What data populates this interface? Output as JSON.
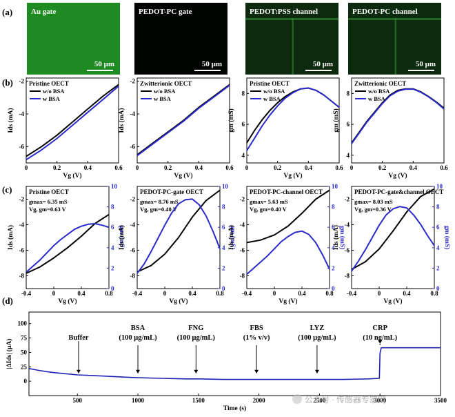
{
  "panel_labels": [
    "(a)",
    "(b)",
    "(c)",
    "(d)"
  ],
  "images": [
    {
      "title": "Au gate",
      "scalebar": "50 μm",
      "tone": "#1e8a22",
      "stripe": false
    },
    {
      "title": "PEDOT-PC gate",
      "scalebar": "50 μm",
      "tone": "#020402",
      "stripe": false
    },
    {
      "title": "PEDOT:PSS channel",
      "scalebar": "50 μm",
      "tone": "#0d2a0f",
      "stripe": true
    },
    {
      "title": "PEDOT-PC channel",
      "scalebar": "50 μm",
      "tone": "#0c2a0e",
      "stripe": true
    }
  ],
  "colors": {
    "black": "#000000",
    "blue": "#2a2ac8",
    "trace": "#1f22b4"
  },
  "chart_data": [
    {
      "type": "line",
      "title": "Pristine OECT",
      "xlabel": "Vg (V)",
      "ylabel": "Ids (mA)",
      "xlim": [
        0,
        0.6
      ],
      "ylim": [
        -7,
        -1.8
      ],
      "xticks": [
        0,
        0.2,
        0.4,
        0.6
      ],
      "yticks": [
        -6,
        -4,
        -2
      ],
      "legend": [
        "w/o BSA",
        "w  BSA"
      ],
      "series": [
        {
          "name": "w/o BSA",
          "color": "#000000",
          "x": [
            0,
            0.1,
            0.2,
            0.3,
            0.4,
            0.5,
            0.6
          ],
          "y": [
            -6.6,
            -6.0,
            -5.3,
            -4.5,
            -3.7,
            -2.9,
            -2.2
          ]
        },
        {
          "name": "w  BSA",
          "color": "#2a2ac8",
          "x": [
            0,
            0.1,
            0.2,
            0.3,
            0.4,
            0.5,
            0.6
          ],
          "y": [
            -6.8,
            -6.2,
            -5.5,
            -4.7,
            -3.9,
            -3.1,
            -2.3
          ]
        }
      ]
    },
    {
      "type": "line",
      "title": "Zwitterionic OECT",
      "xlabel": "Vg (V)",
      "ylabel": "Ids (mA)",
      "xlim": [
        0,
        0.6
      ],
      "ylim": [
        -7,
        -1.8
      ],
      "xticks": [
        0,
        0.2,
        0.4,
        0.6
      ],
      "yticks": [
        -6,
        -4,
        -2
      ],
      "legend": [
        "w/o BSA",
        "w  BSA"
      ],
      "series": [
        {
          "name": "w/o BSA",
          "color": "#000000",
          "x": [
            0,
            0.1,
            0.2,
            0.3,
            0.4,
            0.5,
            0.6
          ],
          "y": [
            -6.5,
            -5.8,
            -5.1,
            -4.4,
            -3.6,
            -2.9,
            -2.2
          ]
        },
        {
          "name": "w  BSA",
          "color": "#2a2ac8",
          "x": [
            0,
            0.1,
            0.2,
            0.3,
            0.4,
            0.5,
            0.6
          ],
          "y": [
            -6.55,
            -5.85,
            -5.15,
            -4.45,
            -3.65,
            -2.95,
            -2.25
          ]
        }
      ]
    },
    {
      "type": "line",
      "title": "Pristine OECT",
      "xlabel": "Vg (V)",
      "ylabel": "gm (mS)",
      "xlim": [
        0,
        0.6
      ],
      "ylim": [
        3.5,
        9
      ],
      "xticks": [
        0,
        0.2,
        0.4,
        0.6
      ],
      "yticks": [
        4,
        6,
        8
      ],
      "legend": [
        "w/o BSA",
        "w  BSA"
      ],
      "series": [
        {
          "name": "w/o BSA",
          "color": "#000000",
          "x": [
            0,
            0.05,
            0.1,
            0.15,
            0.2,
            0.25,
            0.3,
            0.35,
            0.4,
            0.45,
            0.5,
            0.55,
            0.6
          ],
          "y": [
            4.8,
            5.6,
            6.3,
            6.9,
            7.4,
            7.8,
            8.1,
            8.3,
            8.35,
            8.2,
            7.9,
            7.5,
            7.1
          ]
        },
        {
          "name": "w  BSA",
          "color": "#2a2ac8",
          "x": [
            0,
            0.05,
            0.1,
            0.15,
            0.2,
            0.25,
            0.3,
            0.35,
            0.4,
            0.45,
            0.5,
            0.55,
            0.6
          ],
          "y": [
            4.3,
            5.1,
            5.9,
            6.6,
            7.2,
            7.7,
            8.05,
            8.3,
            8.35,
            8.2,
            7.9,
            7.5,
            7.1
          ]
        }
      ]
    },
    {
      "type": "line",
      "title": "Zwitterionic OECT",
      "xlabel": "Vg (V)",
      "ylabel": "gm (mS)",
      "xlim": [
        0,
        0.6
      ],
      "ylim": [
        3.5,
        9
      ],
      "xticks": [
        0,
        0.2,
        0.4,
        0.6
      ],
      "yticks": [
        4,
        6,
        8
      ],
      "legend": [
        "w/o BSA",
        "w  BSA"
      ],
      "series": [
        {
          "name": "w/o BSA",
          "color": "#000000",
          "x": [
            0,
            0.05,
            0.1,
            0.15,
            0.2,
            0.25,
            0.3,
            0.35,
            0.4,
            0.45,
            0.5,
            0.55,
            0.6
          ],
          "y": [
            4.8,
            5.5,
            6.2,
            6.8,
            7.4,
            7.9,
            8.2,
            8.3,
            8.3,
            8.1,
            7.8,
            7.45,
            7.05
          ]
        },
        {
          "name": "w  BSA",
          "color": "#2a2ac8",
          "x": [
            0,
            0.05,
            0.1,
            0.15,
            0.2,
            0.25,
            0.3,
            0.35,
            0.4,
            0.45,
            0.5,
            0.55,
            0.6
          ],
          "y": [
            4.75,
            5.45,
            6.15,
            6.75,
            7.35,
            7.85,
            8.15,
            8.28,
            8.28,
            8.08,
            7.78,
            7.42,
            7.0
          ]
        }
      ]
    },
    {
      "type": "line",
      "title": "Pristine OECT",
      "annotation": [
        "gmax= 6.35 mS",
        "Vg, gm=0.63 V"
      ],
      "xlabel": "Vg (V)",
      "ylabel": "Ids (mA)",
      "y2label": "gm (mS)",
      "xlim": [
        -0.4,
        0.8
      ],
      "ylim": [
        -9,
        -1
      ],
      "y2lim": [
        0,
        10
      ],
      "xticks": [
        -0.4,
        0,
        0.4,
        0.8
      ],
      "yticks": [
        -8,
        -6,
        -4,
        -2
      ],
      "y2ticks": [
        0,
        2,
        4,
        6,
        8,
        10
      ],
      "series": [
        {
          "name": "Ids",
          "axis": "left",
          "color": "#000000",
          "x": [
            -0.4,
            -0.2,
            0,
            0.2,
            0.4,
            0.6,
            0.8
          ],
          "y": [
            -7.8,
            -7.3,
            -6.6,
            -5.8,
            -4.9,
            -3.9,
            -3.2
          ]
        },
        {
          "name": "gm",
          "axis": "right",
          "color": "#2a2ac8",
          "x": [
            -0.4,
            -0.3,
            -0.2,
            -0.1,
            0,
            0.1,
            0.2,
            0.3,
            0.4,
            0.5,
            0.6,
            0.7,
            0.8
          ],
          "y": [
            1.6,
            2.2,
            2.8,
            3.5,
            4.2,
            4.8,
            5.3,
            5.8,
            6.1,
            6.3,
            6.35,
            6.2,
            6.0
          ]
        }
      ]
    },
    {
      "type": "line",
      "title": "PEDOT-PC-gate OECT",
      "annotation": [
        "gmax= 8.76 mS",
        "Vg, gm=0.40 V"
      ],
      "xlabel": "Vg (V)",
      "ylabel": "Ids (mA)",
      "y2label": "gm (mS)",
      "xlim": [
        -0.4,
        0.8
      ],
      "ylim": [
        -9,
        -1
      ],
      "y2lim": [
        0,
        10
      ],
      "xticks": [
        -0.4,
        0,
        0.4,
        0.8
      ],
      "yticks": [
        -8,
        -6,
        -4,
        -2
      ],
      "y2ticks": [
        0,
        2,
        4,
        6,
        8,
        10
      ],
      "series": [
        {
          "name": "Ids",
          "axis": "left",
          "color": "#000000",
          "x": [
            -0.4,
            -0.2,
            0,
            0.2,
            0.4,
            0.6,
            0.8
          ],
          "y": [
            -7.7,
            -7.2,
            -6.3,
            -5.0,
            -3.4,
            -2.1,
            -1.3
          ]
        },
        {
          "name": "gm",
          "axis": "right",
          "color": "#2a2ac8",
          "x": [
            -0.4,
            -0.3,
            -0.2,
            -0.1,
            0,
            0.1,
            0.2,
            0.3,
            0.4,
            0.5,
            0.6,
            0.7,
            0.8
          ],
          "y": [
            1.5,
            2.4,
            3.6,
            4.9,
            6.2,
            7.4,
            8.3,
            8.7,
            8.76,
            8.2,
            7.1,
            5.6,
            3.9
          ]
        }
      ]
    },
    {
      "type": "line",
      "title": "PEDOT-PC-channel OECT",
      "annotation": [
        "gmax= 5.63 mS",
        "Vg, gm=0.40 V"
      ],
      "xlabel": "Vg (V)",
      "ylabel": "Ids (mA)",
      "y2label": "gm (mS)",
      "xlim": [
        -0.4,
        0.8
      ],
      "ylim": [
        -9,
        -1
      ],
      "y2lim": [
        0,
        10
      ],
      "xticks": [
        -0.4,
        0,
        0.4,
        0.8
      ],
      "yticks": [
        -8,
        -6,
        -4,
        -2
      ],
      "y2ticks": [
        0,
        2,
        4,
        6,
        8,
        10
      ],
      "series": [
        {
          "name": "Ids",
          "axis": "left",
          "color": "#000000",
          "x": [
            -0.4,
            -0.2,
            0,
            0.2,
            0.4,
            0.6,
            0.8
          ],
          "y": [
            -5.4,
            -5.2,
            -4.8,
            -4.1,
            -3.1,
            -2.0,
            -1.3
          ]
        },
        {
          "name": "gm",
          "axis": "right",
          "color": "#2a2ac8",
          "x": [
            -0.4,
            -0.3,
            -0.2,
            -0.1,
            0,
            0.1,
            0.2,
            0.3,
            0.4,
            0.5,
            0.6,
            0.7,
            0.8
          ],
          "y": [
            1.4,
            2.0,
            2.6,
            3.2,
            3.9,
            4.6,
            5.1,
            5.5,
            5.63,
            5.3,
            4.5,
            3.3,
            1.9
          ]
        }
      ]
    },
    {
      "type": "line",
      "title": "PEDOT-PC-gate&channel OECT",
      "annotation": [
        "gmax= 8.03 mS",
        "Vg, gm=0.36 V"
      ],
      "xlabel": "Vg (V)",
      "ylabel": "Ids (mA)",
      "y2label": "gm (mS)",
      "xlim": [
        -0.4,
        0.8
      ],
      "ylim": [
        -9,
        -1
      ],
      "y2lim": [
        0,
        10
      ],
      "xticks": [
        -0.4,
        0,
        0.4,
        0.8
      ],
      "yticks": [
        -8,
        -6,
        -4,
        -2
      ],
      "y2ticks": [
        0,
        2,
        4,
        6,
        8,
        10
      ],
      "series": [
        {
          "name": "Ids",
          "axis": "left",
          "color": "#000000",
          "x": [
            -0.4,
            -0.2,
            0,
            0.2,
            0.4,
            0.6,
            0.8
          ],
          "y": [
            -7.5,
            -6.9,
            -5.9,
            -4.5,
            -3.0,
            -1.8,
            -1.2
          ]
        },
        {
          "name": "gm",
          "axis": "right",
          "color": "#2a2ac8",
          "x": [
            -0.4,
            -0.3,
            -0.2,
            -0.1,
            0,
            0.1,
            0.2,
            0.3,
            0.4,
            0.5,
            0.6,
            0.7,
            0.8
          ],
          "y": [
            1.7,
            2.7,
            3.8,
            5.0,
            6.2,
            7.2,
            7.8,
            8.03,
            7.9,
            7.2,
            6.3,
            5.2,
            4.2
          ]
        }
      ]
    },
    {
      "type": "line",
      "title": "",
      "xlabel": "Time (s)",
      "ylabel": "|ΔIds| (μA)",
      "xlim": [
        100,
        3500
      ],
      "ylim": [
        -25,
        120
      ],
      "xticks": [
        500,
        1000,
        1500,
        2000,
        2500,
        3000,
        3500
      ],
      "yticks": [
        0,
        25,
        50,
        75,
        100
      ],
      "annotations": [
        {
          "lines": [
            "Buffer"
          ],
          "x": 510
        },
        {
          "lines": [
            "BSA",
            "(100 μg/mL)"
          ],
          "x": 1000
        },
        {
          "lines": [
            "FNG",
            "(100 μg/mL)"
          ],
          "x": 1480
        },
        {
          "lines": [
            "FBS",
            "(1% v/v)"
          ],
          "x": 1980
        },
        {
          "lines": [
            "LYZ",
            "(100 μg/mL)"
          ],
          "x": 2480
        },
        {
          "lines": [
            "CRP",
            "(10 ng/mL)"
          ],
          "x": 3000
        }
      ],
      "series": [
        {
          "name": "|ΔIds|",
          "color": "#1f22b4",
          "x": [
            100,
            200,
            300,
            400,
            500,
            700,
            900,
            1000,
            1200,
            1400,
            1500,
            1700,
            1900,
            2000,
            2200,
            2400,
            2500,
            2700,
            2900,
            2995,
            3000,
            3010,
            3100,
            3300,
            3500
          ],
          "y": [
            22,
            18,
            15,
            13,
            11,
            9,
            7,
            6,
            5,
            4,
            4,
            3,
            3,
            3,
            3,
            3,
            3,
            3,
            4,
            5,
            48,
            58,
            58,
            58,
            58
          ]
        }
      ]
    }
  ],
  "watermark": "公众号 · 传感器专家网"
}
